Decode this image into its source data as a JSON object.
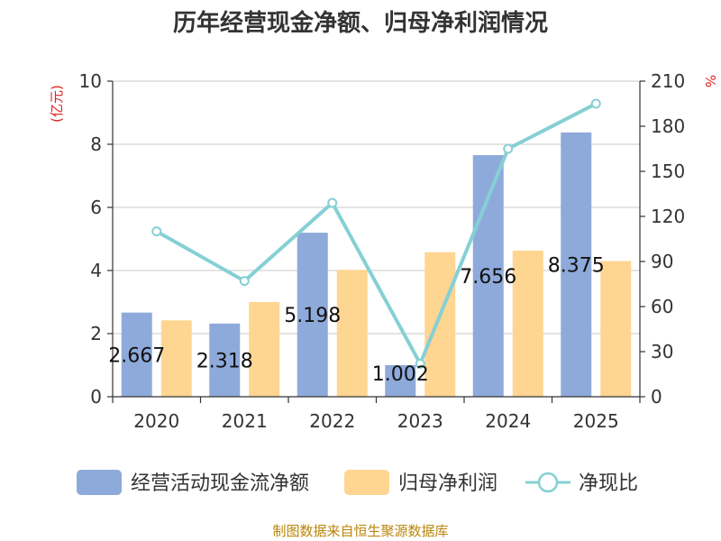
{
  "chart_data": {
    "type": "bar",
    "title": "历年经营现金净额、归母净利润情况",
    "categories": [
      "2020",
      "2021",
      "2022",
      "2023",
      "2024",
      "2025"
    ],
    "left_axis": {
      "unit": "(亿元)",
      "ylim": [
        0,
        10
      ],
      "ticks": [
        "0",
        "2",
        "4",
        "6",
        "8",
        "10"
      ]
    },
    "right_axis": {
      "unit": "%",
      "ylim": [
        0,
        210
      ],
      "ticks": [
        "0",
        "30",
        "60",
        "90",
        "120",
        "150",
        "180",
        "210"
      ]
    },
    "series": [
      {
        "name": "经营活动现金流净额",
        "kind": "bar",
        "axis": "left",
        "color": "#8eaadb",
        "values": [
          2.667,
          2.318,
          5.198,
          1.002,
          7.656,
          8.375
        ],
        "labels": [
          "2.667",
          "2.318",
          "5.198",
          "1.002",
          "7.656",
          "8.375"
        ]
      },
      {
        "name": "归母净利润",
        "kind": "bar",
        "axis": "left",
        "color": "#ffd592",
        "values": [
          2.42,
          3.0,
          4.02,
          4.58,
          4.63,
          4.3
        ]
      },
      {
        "name": "净现比",
        "kind": "line",
        "axis": "right",
        "color": "#85d0d5",
        "values": [
          110,
          77,
          129,
          22,
          165,
          195
        ]
      }
    ],
    "source": "制图数据来自恒生聚源数据库"
  }
}
